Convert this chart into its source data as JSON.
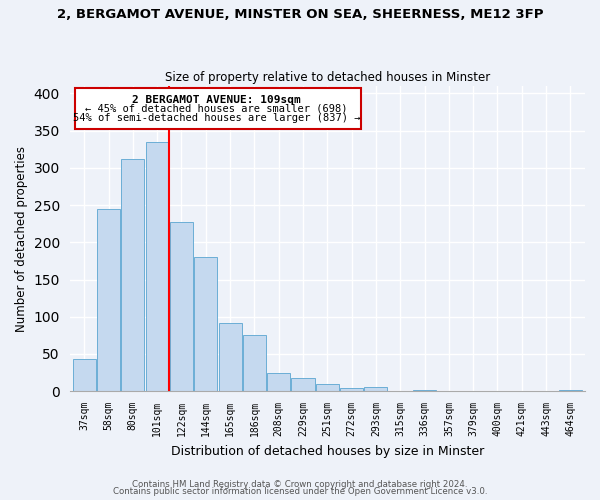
{
  "title": "2, BERGAMOT AVENUE, MINSTER ON SEA, SHEERNESS, ME12 3FP",
  "subtitle": "Size of property relative to detached houses in Minster",
  "xlabel": "Distribution of detached houses by size in Minster",
  "ylabel": "Number of detached properties",
  "bar_labels": [
    "37sqm",
    "58sqm",
    "80sqm",
    "101sqm",
    "122sqm",
    "144sqm",
    "165sqm",
    "186sqm",
    "208sqm",
    "229sqm",
    "251sqm",
    "272sqm",
    "293sqm",
    "315sqm",
    "336sqm",
    "357sqm",
    "379sqm",
    "400sqm",
    "421sqm",
    "443sqm",
    "464sqm"
  ],
  "bar_values": [
    43,
    245,
    312,
    335,
    228,
    180,
    91,
    75,
    25,
    18,
    10,
    4,
    6,
    0,
    1,
    0,
    0,
    0,
    0,
    0,
    2
  ],
  "bar_color": "#c5d9ef",
  "bar_edge_color": "#6baed6",
  "vline_x": 3.5,
  "vline_color": "red",
  "annotation_title": "2 BERGAMOT AVENUE: 109sqm",
  "annotation_line1": "← 45% of detached houses are smaller (698)",
  "annotation_line2": "54% of semi-detached houses are larger (837) →",
  "annotation_box_color": "white",
  "annotation_box_edge": "#cc0000",
  "footer1": "Contains HM Land Registry data © Crown copyright and database right 2024.",
  "footer2": "Contains public sector information licensed under the Open Government Licence v3.0.",
  "ylim": [
    0,
    410
  ],
  "bg_color": "#eef2f9"
}
